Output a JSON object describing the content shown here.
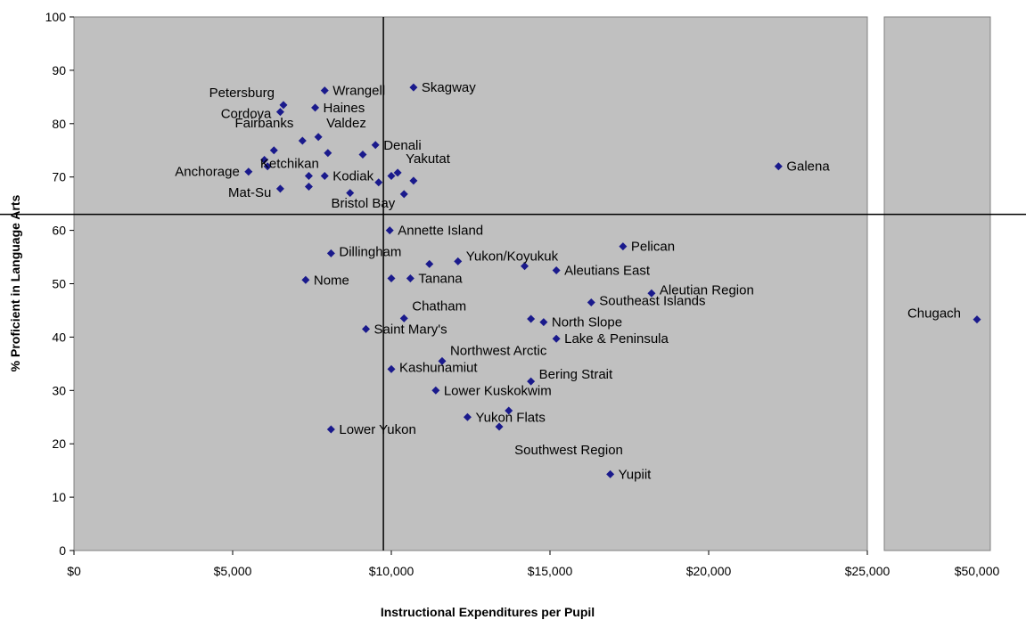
{
  "chart_data": {
    "type": "scatter",
    "title": "",
    "xlabel": "Instructional Expenditures per Pupil",
    "ylabel": "% Proficient in Language Arts",
    "ylim": [
      0,
      100
    ],
    "yticks": [
      "0",
      "10",
      "20",
      "30",
      "40",
      "50",
      "60",
      "70",
      "80",
      "90",
      "100"
    ],
    "main_panel": {
      "xlim": [
        0,
        25000
      ],
      "xticks": [
        "$0",
        "$5,000",
        "$10,000",
        "$15,000",
        "$20,000",
        "$25,000"
      ]
    },
    "break_panel": {
      "xtick": "$50,000"
    },
    "reference_lines": {
      "x": 9750,
      "y": 63
    },
    "grid": false,
    "legend": "none",
    "marker_color": "#1a1a8c",
    "panel_color": "#c0c0c0",
    "points": [
      {
        "label": "Petersburg",
        "x": 6600,
        "y": 83.5
      },
      {
        "label": "Cordova",
        "x": 6500,
        "y": 82.2
      },
      {
        "label": "Wrangell",
        "x": 7900,
        "y": 86.2
      },
      {
        "label": "Haines",
        "x": 7600,
        "y": 83.0
      },
      {
        "label": "Skagway",
        "x": 10700,
        "y": 86.8
      },
      {
        "label": "Valdez",
        "x": 7700,
        "y": 77.5
      },
      {
        "label": "Denali",
        "x": 9500,
        "y": 76.0
      },
      {
        "label": "Fairbanks",
        "x": 7200,
        "y": 76.8
      },
      {
        "label": "Ketchikan",
        "x": 8000,
        "y": 74.5
      },
      {
        "label": "Anchorage",
        "x": 5500,
        "y": 71.0
      },
      {
        "label": "Yakutat",
        "x": 10200,
        "y": 70.8
      },
      {
        "label": "Kodiak",
        "x": 7900,
        "y": 70.2
      },
      {
        "label": "Mat-Su",
        "x": 6500,
        "y": 67.8
      },
      {
        "label": "Bristol Bay",
        "x": 10400,
        "y": 66.8
      },
      {
        "label": "Galena",
        "x": 22200,
        "y": 72.0
      },
      {
        "label": "Annette Island",
        "x": 9950,
        "y": 60.0
      },
      {
        "label": "Dillingham",
        "x": 8100,
        "y": 55.7
      },
      {
        "label": "Pelican",
        "x": 17300,
        "y": 57.0
      },
      {
        "label": "Yukon/Koyukuk",
        "x": 12100,
        "y": 54.2
      },
      {
        "label": "Aleutians East",
        "x": 15200,
        "y": 52.5
      },
      {
        "label": "Nome",
        "x": 7300,
        "y": 50.7
      },
      {
        "label": "Tanana",
        "x": 10600,
        "y": 51.0
      },
      {
        "label": "Aleutian Region",
        "x": 18200,
        "y": 48.2
      },
      {
        "label": "Southeast Islands",
        "x": 16300,
        "y": 46.5
      },
      {
        "label": "Chatham",
        "x": 10400,
        "y": 43.5
      },
      {
        "label": "North Slope",
        "x": 14800,
        "y": 42.8
      },
      {
        "label": "Saint Mary's",
        "x": 9200,
        "y": 41.5
      },
      {
        "label": "Lake & Peninsula",
        "x": 15200,
        "y": 39.7
      },
      {
        "label": "Northwest Arctic",
        "x": 11600,
        "y": 35.5
      },
      {
        "label": "Kashunamiut",
        "x": 10000,
        "y": 34.0
      },
      {
        "label": "Bering Strait",
        "x": 14400,
        "y": 31.7
      },
      {
        "label": "Lower Kuskokwim",
        "x": 11400,
        "y": 30.0
      },
      {
        "label": "Yukon Flats",
        "x": 12400,
        "y": 25.0
      },
      {
        "label": "Lower Yukon",
        "x": 8100,
        "y": 22.7
      },
      {
        "label": "Southwest Region",
        "x": 13400,
        "y": 23.2
      },
      {
        "label": "Yupiit",
        "x": 16900,
        "y": 14.3
      }
    ],
    "break_points": [
      {
        "label": "Chugach",
        "y": 43.3
      }
    ],
    "unlabeled_points": [
      {
        "x": 6000,
        "y": 73.2
      },
      {
        "x": 6100,
        "y": 72.0
      },
      {
        "x": 6300,
        "y": 75.0
      },
      {
        "x": 7400,
        "y": 68.2
      },
      {
        "x": 7400,
        "y": 70.2
      },
      {
        "x": 8700,
        "y": 67.0
      },
      {
        "x": 9100,
        "y": 74.2
      },
      {
        "x": 9600,
        "y": 69.0
      },
      {
        "x": 10000,
        "y": 70.2
      },
      {
        "x": 10700,
        "y": 69.3
      },
      {
        "x": 10000,
        "y": 51.0
      },
      {
        "x": 11200,
        "y": 53.7
      },
      {
        "x": 14200,
        "y": 53.3
      },
      {
        "x": 14400,
        "y": 43.4
      },
      {
        "x": 13700,
        "y": 26.2
      }
    ]
  }
}
